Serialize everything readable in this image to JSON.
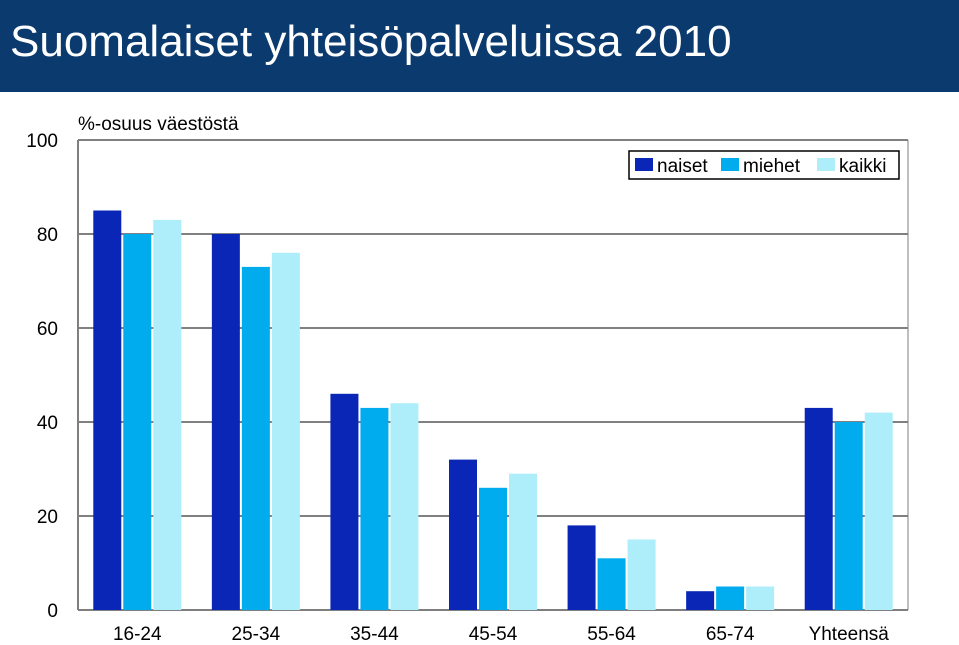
{
  "header": {
    "title": "Suomalaiset yhteisöpalveluissa 2010"
  },
  "colors": {
    "header_bg": "#0b3a6e",
    "naiset": "#0a26b6",
    "miehet": "#00abee",
    "kaikki": "#aeeefa"
  },
  "chart_data": {
    "type": "bar",
    "title": "",
    "ylabel": "%-osuus väestöstä",
    "xlabel": "",
    "categories": [
      "16-24",
      "25-34",
      "35-44",
      "45-54",
      "55-64",
      "65-74",
      "Yhteensä"
    ],
    "series": [
      {
        "name": "naiset",
        "color": "#0a26b6",
        "values": [
          85,
          80,
          46,
          32,
          18,
          4,
          43
        ]
      },
      {
        "name": "miehet",
        "color": "#00abee",
        "values": [
          80,
          73,
          43,
          26,
          11,
          5,
          40
        ]
      },
      {
        "name": "kaikki",
        "color": "#aeeefa",
        "values": [
          83,
          76,
          44,
          29,
          15,
          5,
          42
        ]
      }
    ],
    "ylim": [
      0,
      100
    ],
    "yticks": [
      0,
      20,
      40,
      60,
      80,
      100
    ],
    "grid": true,
    "legend_position": "top-right"
  }
}
